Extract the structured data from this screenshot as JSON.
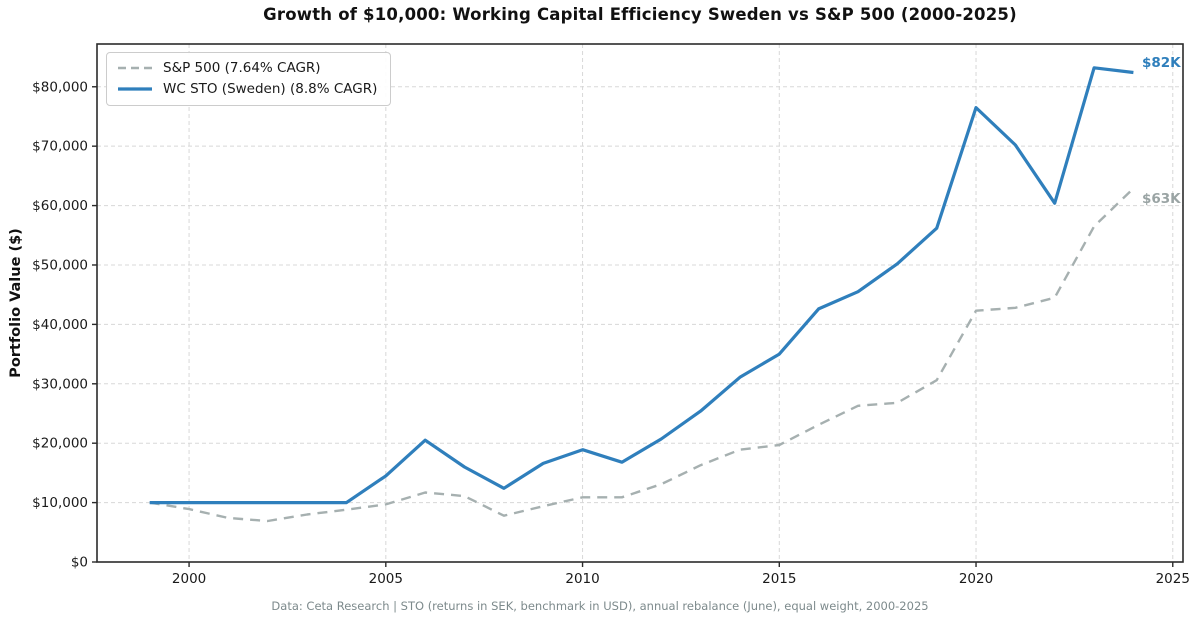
{
  "title": "Growth of $10,000: Working Capital Efficiency Sweden vs S&P 500 (2000-2025)",
  "y_axis_label": "Portfolio Value ($)",
  "footer": "Data: Ceta Research | STO (returns in SEK, benchmark in USD), annual rebalance (June), equal weight, 2000-2025",
  "legend": {
    "sp500_label": "S&P 500 (7.64% CAGR)",
    "wc_sto_label": "WC STO (Sweden) (8.8% CAGR)"
  },
  "end_labels": {
    "wc_sto": "$82K",
    "sp500": "$63K"
  },
  "colors": {
    "wc_sto": "#2f7fbc",
    "sp500": "#a6b0b0",
    "end_label_sp500": "#9aa4a4",
    "grid": "#d8d8d8",
    "spine": "#2b2b2b",
    "tick_text": "#1a1a1a"
  },
  "chart_data": {
    "type": "line",
    "title": "Growth of $10,000: Working Capital Efficiency Sweden vs S&P 500 (2000-2025)",
    "xlabel": "",
    "ylabel": "Portfolio Value ($)",
    "grid": true,
    "legend_position": "upper-left",
    "xlim": [
      1997.66,
      2025.26
    ],
    "ylim": [
      0,
      87200
    ],
    "x_ticks": [
      2000,
      2005,
      2010,
      2015,
      2020,
      2025
    ],
    "x_tick_labels": [
      "2000",
      "2005",
      "2010",
      "2015",
      "2020",
      "2025"
    ],
    "y_ticks": [
      0,
      10000,
      20000,
      30000,
      40000,
      50000,
      60000,
      70000,
      80000
    ],
    "y_tick_labels": [
      "$0",
      "$10,000",
      "$20,000",
      "$30,000",
      "$40,000",
      "$50,000",
      "$60,000",
      "$70,000",
      "$80,000"
    ],
    "x": [
      1999,
      2000,
      2001,
      2002,
      2003,
      2004,
      2005,
      2006,
      2007,
      2008,
      2009,
      2010,
      2011,
      2012,
      2013,
      2014,
      2015,
      2016,
      2017,
      2018,
      2019,
      2020,
      2021,
      2022,
      2023,
      2024
    ],
    "series": [
      {
        "name": "S&P 500 (7.64% CAGR)",
        "style": "dashed",
        "color_key": "sp500",
        "values": [
          10000,
          8900,
          7400,
          6900,
          8000,
          8800,
          9700,
          11700,
          11100,
          7800,
          9400,
          10900,
          10900,
          13100,
          16300,
          18900,
          19700,
          23100,
          26300,
          26800,
          30600,
          42300,
          42800,
          44500,
          56500,
          62900
        ]
      },
      {
        "name": "WC STO (Sweden) (8.8% CAGR)",
        "style": "solid",
        "color_key": "wc_sto",
        "values": [
          10000,
          10000,
          10000,
          10000,
          10000,
          10000,
          14500,
          20500,
          16000,
          12400,
          16600,
          18900,
          16800,
          20700,
          25400,
          31100,
          35000,
          42600,
          45500,
          50200,
          56200,
          76500,
          70200,
          60400,
          83200,
          82400
        ]
      }
    ]
  }
}
